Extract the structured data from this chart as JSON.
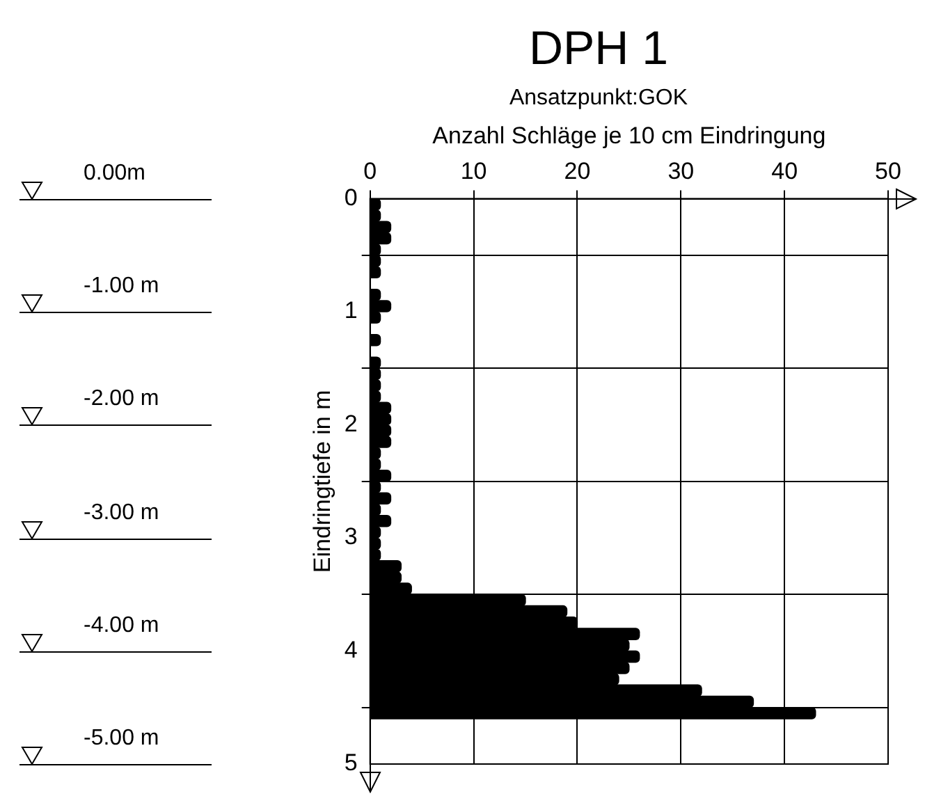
{
  "chart_data": {
    "type": "histogram",
    "orientation": "horizontal",
    "title": "DPH 1",
    "subtitle": "Ansatzpunkt:GOK",
    "xlabel": "Anzahl Schläge je 10 cm Eindringung",
    "ylabel": "Eindringtiefe in m",
    "bins": [
      0,
      0.1,
      0.2,
      0.3,
      0.4,
      0.5,
      0.6,
      0.7,
      0.8,
      0.9,
      1.0,
      1.1,
      1.2,
      1.3,
      1.4,
      1.5,
      1.6,
      1.7,
      1.8,
      1.9,
      2.0,
      2.1,
      2.2,
      2.3,
      2.4,
      2.5,
      2.6,
      2.7,
      2.8,
      2.9,
      3.0,
      3.1,
      3.2,
      3.3,
      3.4,
      3.5,
      3.6,
      3.7,
      3.8,
      3.9,
      4.0,
      4.1,
      4.2,
      4.3,
      4.4,
      4.5,
      4.6
    ],
    "values": [
      1,
      1,
      2,
      2,
      1,
      1,
      1,
      0,
      1,
      2,
      1,
      0,
      1,
      0,
      1,
      1,
      1,
      1,
      2,
      2,
      2,
      2,
      1,
      1,
      2,
      1,
      2,
      1,
      2,
      1,
      1,
      1,
      3,
      3,
      4,
      15,
      19,
      20,
      26,
      25,
      26,
      25,
      24,
      32,
      37,
      43
    ],
    "color": "#000000",
    "xlim": [
      0,
      50
    ],
    "xticks": [
      0,
      10,
      20,
      30,
      40,
      50
    ],
    "ylim": [
      5,
      0
    ],
    "yticks": [
      0,
      1,
      2,
      3,
      4,
      5
    ],
    "grid": true,
    "annotations": [
      "0.00m",
      "-1.00 m",
      "-2.00 m",
      "-3.00 m",
      "-4.00 m",
      "-5.00 m"
    ]
  }
}
